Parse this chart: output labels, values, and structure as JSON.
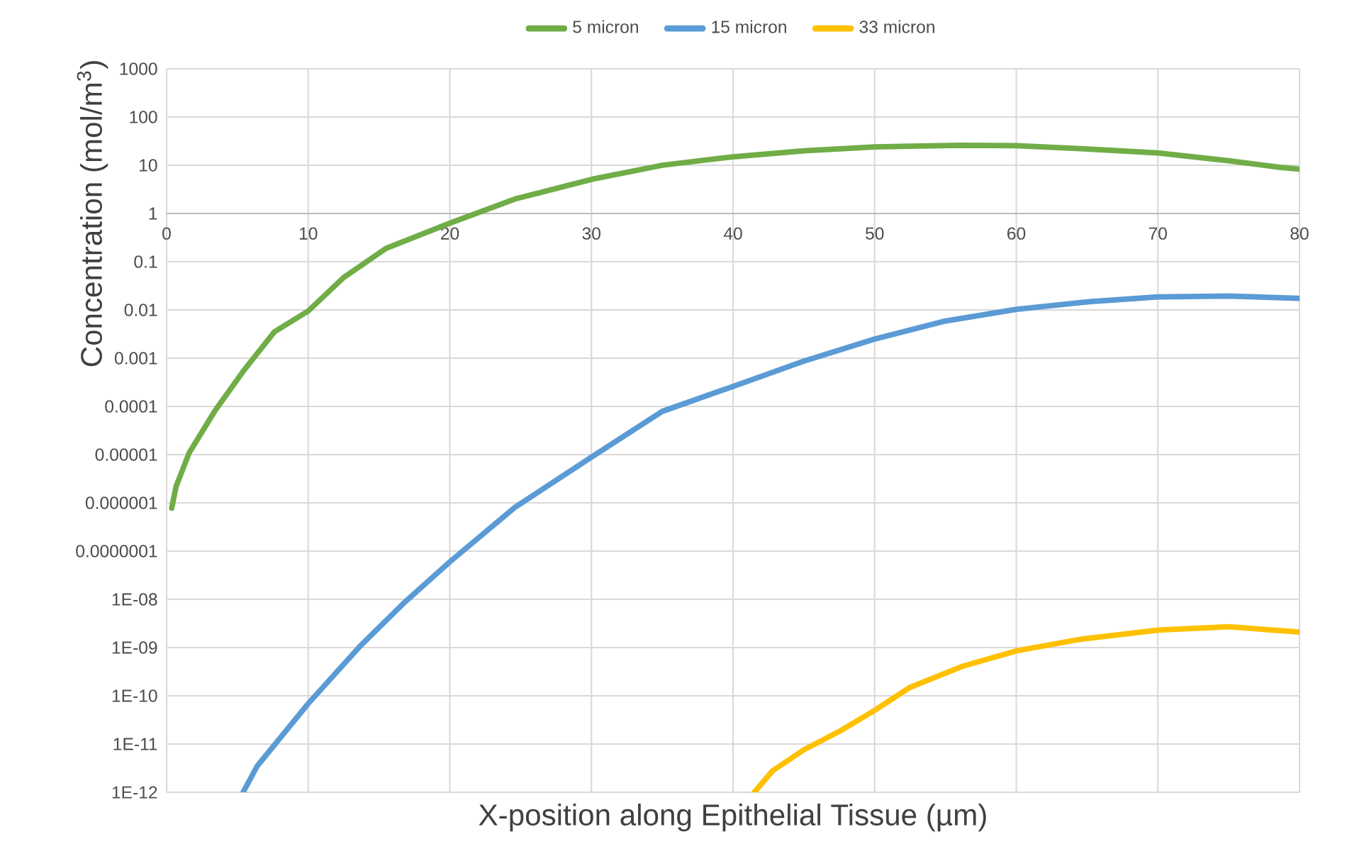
{
  "chart_data": {
    "type": "line",
    "xlabel": "X-position along Epithelial Tissue (µm)",
    "ylabel": "Concentration (mol/m$^{3}$)",
    "log": "y",
    "grid": true,
    "legend": "top",
    "line_style": "solid",
    "marker": "none",
    "xlim": [
      0,
      80
    ],
    "xticks": [
      0,
      10,
      20,
      30,
      40,
      50,
      60,
      70,
      80
    ],
    "ylim": [
      1e-12,
      1000
    ],
    "yticks": [
      {
        "value": 1000,
        "label": "1000"
      },
      {
        "value": 100,
        "label": "100"
      },
      {
        "value": 10,
        "label": "10"
      },
      {
        "value": 1,
        "label": "1"
      },
      {
        "value": 0.1,
        "label": "0.1"
      },
      {
        "value": 0.01,
        "label": "0.01"
      },
      {
        "value": 0.001,
        "label": "0.001"
      },
      {
        "value": 0.0001,
        "label": "0.0001"
      },
      {
        "value": 1e-05,
        "label": "0.00001"
      },
      {
        "value": 1e-06,
        "label": "0.000001"
      },
      {
        "value": 1e-07,
        "label": "0.0000001"
      },
      {
        "value": 1e-08,
        "label": "1E-08"
      },
      {
        "value": 1e-09,
        "label": "1E-09"
      },
      {
        "value": 1e-10,
        "label": "1E-10"
      },
      {
        "value": 1e-11,
        "label": "1E-11"
      },
      {
        "value": 1e-12,
        "label": "1E-12"
      }
    ],
    "series": [
      {
        "name": "5 micron",
        "color": "#70ad47",
        "x": [
          0.36,
          0.67,
          1.6,
          3.4,
          5.5,
          7.6,
          10,
          12.5,
          15.5,
          20,
          24.6,
          30,
          35,
          40,
          45,
          50,
          56,
          60,
          64.6,
          70,
          75,
          78.6,
          80
        ],
        "values": [
          7.8e-07,
          2.2e-06,
          1.1e-05,
          8e-05,
          0.00058,
          0.0035,
          0.0095,
          0.047,
          0.19,
          0.63,
          2.0,
          5.1,
          10,
          15,
          20,
          24,
          26,
          25.5,
          22,
          18,
          12.4,
          9.1,
          8.3
        ]
      },
      {
        "name": "15 micron",
        "color": "#5b9bd5",
        "x": [
          5.4,
          6.4,
          10,
          13.7,
          16.7,
          20,
          24.6,
          30,
          35,
          40,
          45,
          50,
          55,
          60,
          65.3,
          70,
          75,
          80
        ],
        "values": [
          1e-12,
          3.5e-12,
          6.9e-11,
          1.1e-09,
          8.1e-09,
          6e-08,
          8.1e-07,
          8.9e-06,
          7.9e-05,
          0.00026,
          0.00087,
          0.0025,
          0.0059,
          0.0103,
          0.015,
          0.0186,
          0.0195,
          0.0174
        ]
      },
      {
        "name": "33 micron",
        "color": "#ffc000",
        "x": [
          41.5,
          42.8,
          45,
          47.6,
          50,
          52.5,
          56.2,
          60,
          64.6,
          70,
          75,
          80
        ],
        "values": [
          1e-12,
          2.8e-12,
          7.6e-12,
          1.9e-11,
          5e-11,
          1.5e-10,
          4.1e-10,
          8.5e-10,
          1.5e-09,
          2.3e-09,
          2.7e-09,
          2.1e-09
        ]
      }
    ]
  }
}
